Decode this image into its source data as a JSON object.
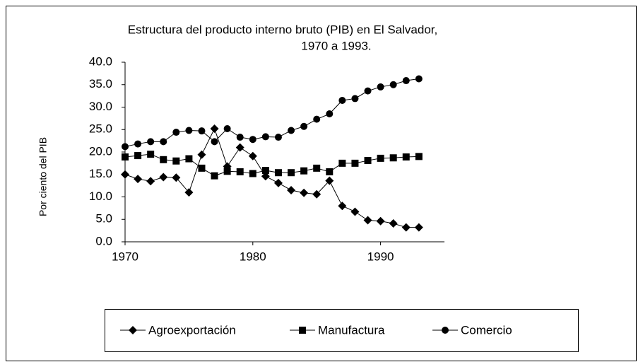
{
  "chart_data": {
    "type": "line",
    "title": [
      "Estructura del producto interno bruto (PIB)  en El Salvador,",
      "1970 a 1993."
    ],
    "y_label": "Por ciento del PIB",
    "x": [
      1970,
      1971,
      1972,
      1973,
      1974,
      1975,
      1976,
      1977,
      1978,
      1979,
      1980,
      1981,
      1982,
      1983,
      1984,
      1985,
      1986,
      1987,
      1988,
      1989,
      1990,
      1991,
      1992,
      1993
    ],
    "series": [
      {
        "name": "Agroexportación",
        "color": "#000000",
        "marker": "diamond",
        "values": [
          15.0,
          14.0,
          13.5,
          14.4,
          14.3,
          11.0,
          19.4,
          25.2,
          16.8,
          21.0,
          19.1,
          14.6,
          13.1,
          11.5,
          10.9,
          10.6,
          13.6,
          8.0,
          6.7,
          4.8,
          4.6,
          4.1,
          3.2,
          3.2
        ]
      },
      {
        "name": "Manufactura",
        "color": "#000000",
        "marker": "square",
        "values": [
          18.9,
          19.2,
          19.5,
          18.3,
          18.0,
          18.5,
          16.4,
          14.7,
          15.7,
          15.6,
          15.2,
          15.9,
          15.4,
          15.4,
          15.8,
          16.4,
          15.6,
          17.5,
          17.5,
          18.1,
          18.6,
          18.7,
          18.9,
          19.0
        ]
      },
      {
        "name": "Comercio",
        "color": "#000000",
        "marker": "circle",
        "values": [
          21.2,
          21.8,
          22.3,
          22.3,
          24.4,
          24.8,
          24.7,
          22.3,
          25.2,
          23.3,
          22.8,
          23.4,
          23.3,
          24.8,
          25.7,
          27.3,
          28.5,
          31.5,
          31.9,
          33.6,
          34.5,
          35.0,
          35.9,
          36.3
        ]
      }
    ],
    "xlim": [
      1970,
      1995
    ],
    "xticks": [
      1970,
      1980,
      1990
    ],
    "ylim": [
      0,
      40
    ],
    "yticks": [
      {
        "value": 0,
        "label": "0.0"
      },
      {
        "value": 5,
        "label": "5.0"
      },
      {
        "value": 10,
        "label": "10.0"
      },
      {
        "value": 15,
        "label": "15.0"
      },
      {
        "value": 20,
        "label": "20.0"
      },
      {
        "value": 25,
        "label": "25.0"
      },
      {
        "value": 30,
        "label": "30.0"
      },
      {
        "value": 35,
        "label": "35.0"
      },
      {
        "value": 40,
        "label": "40.0"
      }
    ],
    "grid": false,
    "legend": "bottom"
  }
}
